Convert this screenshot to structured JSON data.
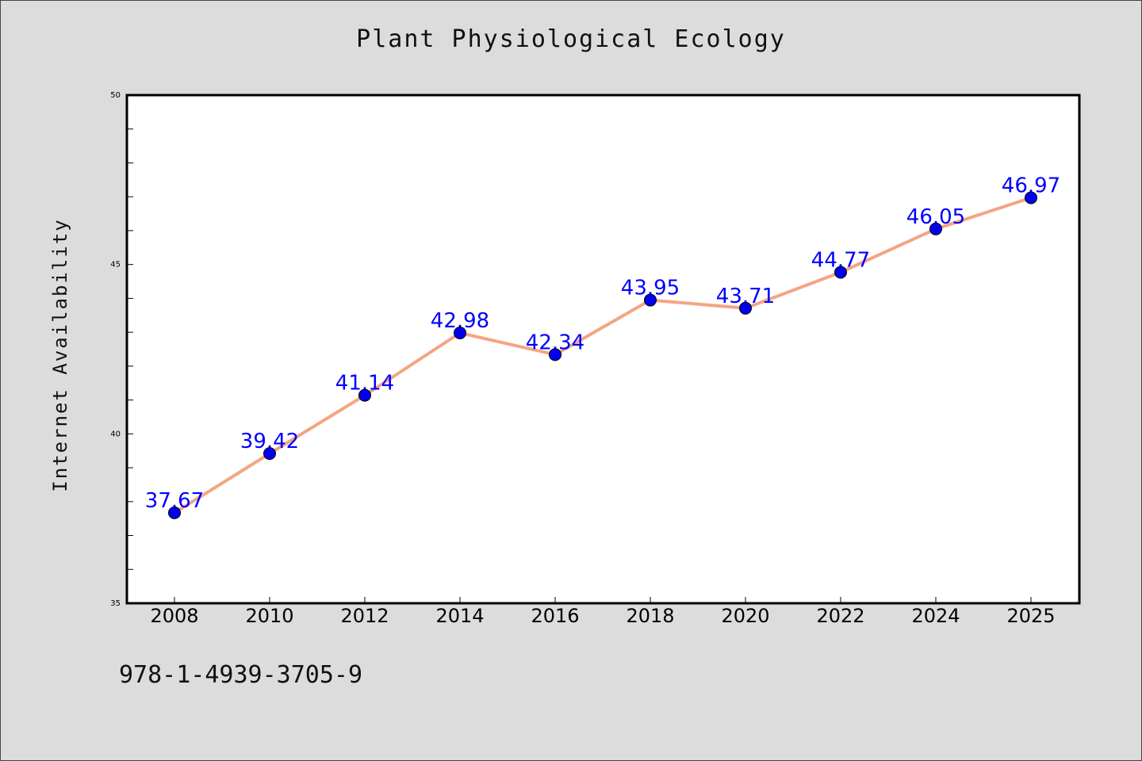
{
  "chart_data": {
    "type": "line",
    "title": "Plant Physiological Ecology",
    "xlabel": "",
    "ylabel": "Internet Availability",
    "categories": [
      "2008",
      "2010",
      "2012",
      "2014",
      "2016",
      "2018",
      "2020",
      "2022",
      "2024",
      "2025"
    ],
    "series": [
      {
        "values": [
          37.67,
          39.42,
          41.14,
          42.98,
          42.34,
          43.95,
          43.71,
          44.77,
          46.05,
          46.97
        ],
        "line_color": "#f4a582",
        "marker_color": "#0000ee",
        "label_color": "#0000ff"
      }
    ],
    "data_labels": [
      "37.67",
      "39.42",
      "41.14",
      "42.98",
      "42.34",
      "43.95",
      "43.71",
      "44.77",
      "46.05",
      "46.97"
    ],
    "ylim": [
      35,
      50
    ],
    "yticks": [
      "35",
      "40",
      "45",
      "50"
    ],
    "grid": false,
    "legend": "none"
  },
  "footnote": "978-1-4939-3705-9"
}
